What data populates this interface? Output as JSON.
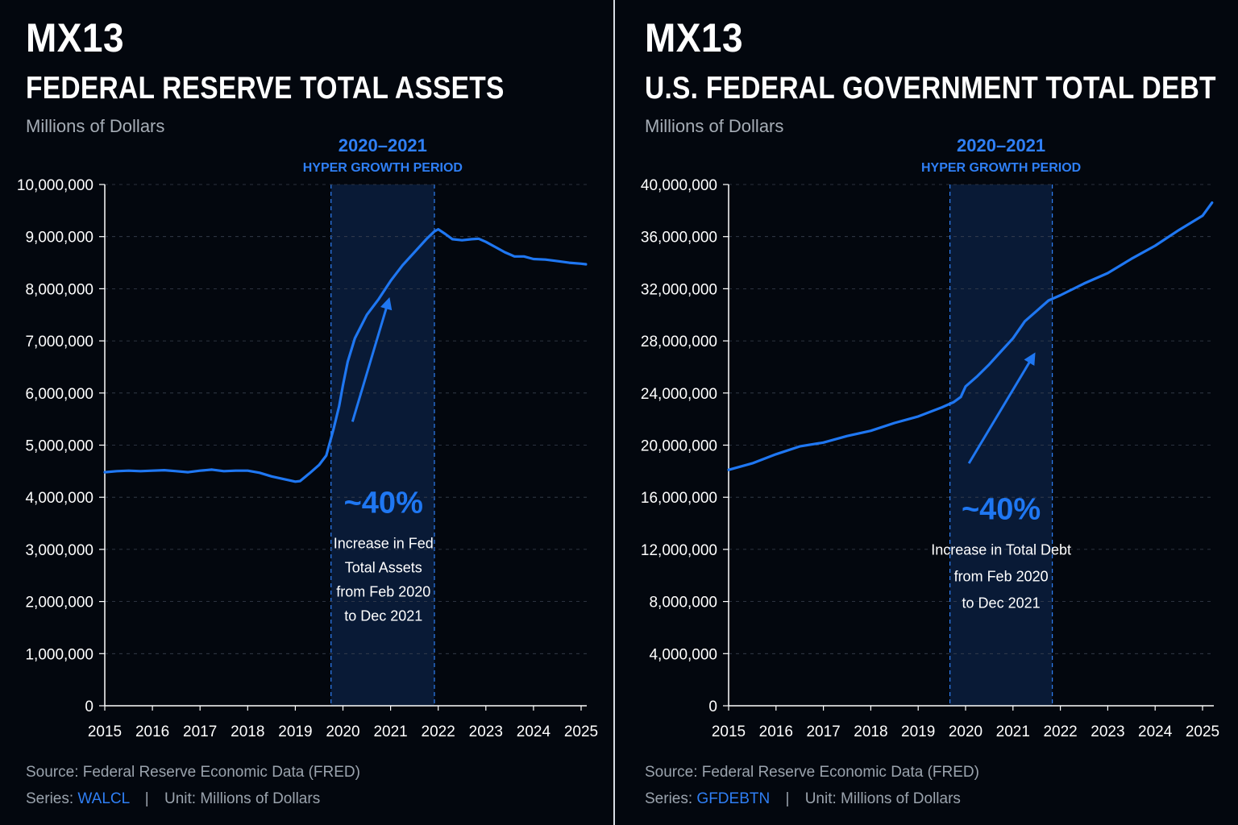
{
  "colors": {
    "background": "#03070e",
    "accent": "#1f77f2",
    "band_fill": "#0c2244",
    "band_edge": "#2f7ff5",
    "text": "#ffffff",
    "muted_text": "#a6adb6"
  },
  "left": {
    "brand": "MX13",
    "title": "FEDERAL RESERVE TOTAL ASSETS",
    "subtitle": "Millions of Dollars",
    "source": "Source: Federal Reserve Economic Data (FRED)",
    "series_prefix": "Series:",
    "series_code": "WALCL",
    "separator": "|",
    "unit": "Unit: Millions of Dollars"
  },
  "right": {
    "brand": "MX13",
    "title": "U.S. FEDERAL GOVERNMENT TOTAL DEBT",
    "subtitle": "Millions of Dollars",
    "source": "Source: Federal Reserve Economic Data (FRED)",
    "series_prefix": "Series:",
    "series_code": "GFDEBTN",
    "separator": "|",
    "unit": "Unit: Millions of Dollars"
  },
  "chart_data": [
    {
      "type": "line",
      "title": "FEDERAL RESERVE TOTAL ASSETS",
      "ylim": [
        0,
        10000000
      ],
      "xlim": [
        2015,
        2025.1
      ],
      "y_ticks": [
        {
          "v": 0,
          "label": "0"
        },
        {
          "v": 1000000,
          "label": "1,000,000"
        },
        {
          "v": 2000000,
          "label": "2,000,000"
        },
        {
          "v": 3000000,
          "label": "3,000,000"
        },
        {
          "v": 4000000,
          "label": "4,000,000"
        },
        {
          "v": 5000000,
          "label": "5,000,000"
        },
        {
          "v": 6000000,
          "label": "6,000,000"
        },
        {
          "v": 7000000,
          "label": "7,000,000"
        },
        {
          "v": 8000000,
          "label": "8,000,000"
        },
        {
          "v": 9000000,
          "label": "9,000,000"
        },
        {
          "v": 10000000,
          "label": "10,000,000"
        }
      ],
      "x_ticks": [
        {
          "v": 2015,
          "label": "2015"
        },
        {
          "v": 2016,
          "label": "2016"
        },
        {
          "v": 2017,
          "label": "2017"
        },
        {
          "v": 2018,
          "label": "2018"
        },
        {
          "v": 2019,
          "label": "2019"
        },
        {
          "v": 2020,
          "label": "2020"
        },
        {
          "v": 2021,
          "label": "2021"
        },
        {
          "v": 2022,
          "label": "2022"
        },
        {
          "v": 2023,
          "label": "2023"
        },
        {
          "v": 2024,
          "label": "2024"
        },
        {
          "v": 2025,
          "label": "2025"
        }
      ],
      "grid": "dashed horizontal",
      "band": {
        "from": 2019.75,
        "to": 2021.92,
        "label_top": "2020–2021",
        "label_sub": "HYPER GROWTH PERIOD"
      },
      "annotation": {
        "value": "~40%",
        "lines": [
          "Increase in Fed",
          "Total Assets",
          "from Feb 2020",
          "to Dec 2021"
        ],
        "arrow_from": {
          "x": 2020.2,
          "y": 5450000
        },
        "arrow_to": {
          "x": 2020.95,
          "y": 7750000
        },
        "anchor": {
          "x": 2020.85,
          "y": 3700000
        }
      },
      "series": [
        {
          "points": [
            [
              2015.0,
              4480000
            ],
            [
              2015.25,
              4500000
            ],
            [
              2015.5,
              4510000
            ],
            [
              2015.75,
              4500000
            ],
            [
              2016.0,
              4510000
            ],
            [
              2016.25,
              4520000
            ],
            [
              2016.5,
              4500000
            ],
            [
              2016.75,
              4480000
            ],
            [
              2017.0,
              4510000
            ],
            [
              2017.25,
              4530000
            ],
            [
              2017.5,
              4500000
            ],
            [
              2017.75,
              4510000
            ],
            [
              2018.0,
              4510000
            ],
            [
              2018.25,
              4470000
            ],
            [
              2018.5,
              4400000
            ],
            [
              2018.75,
              4350000
            ],
            [
              2019.0,
              4300000
            ],
            [
              2019.1,
              4310000
            ],
            [
              2019.3,
              4460000
            ],
            [
              2019.5,
              4620000
            ],
            [
              2019.65,
              4800000
            ],
            [
              2019.8,
              5300000
            ],
            [
              2019.92,
              5750000
            ],
            [
              2020.0,
              6150000
            ],
            [
              2020.1,
              6600000
            ],
            [
              2020.25,
              7050000
            ],
            [
              2020.5,
              7500000
            ],
            [
              2020.75,
              7800000
            ],
            [
              2021.0,
              8150000
            ],
            [
              2021.25,
              8450000
            ],
            [
              2021.5,
              8700000
            ],
            [
              2021.75,
              8950000
            ],
            [
              2021.92,
              9100000
            ],
            [
              2022.0,
              9140000
            ],
            [
              2022.15,
              9050000
            ],
            [
              2022.3,
              8950000
            ],
            [
              2022.5,
              8930000
            ],
            [
              2022.7,
              8950000
            ],
            [
              2022.85,
              8960000
            ],
            [
              2023.0,
              8900000
            ],
            [
              2023.2,
              8800000
            ],
            [
              2023.4,
              8700000
            ],
            [
              2023.6,
              8620000
            ],
            [
              2023.8,
              8620000
            ],
            [
              2024.0,
              8570000
            ],
            [
              2024.25,
              8560000
            ],
            [
              2024.5,
              8530000
            ],
            [
              2024.75,
              8500000
            ],
            [
              2025.0,
              8480000
            ],
            [
              2025.1,
              8470000
            ]
          ]
        }
      ]
    },
    {
      "type": "line",
      "title": "U.S. FEDERAL GOVERNMENT TOTAL DEBT",
      "ylim": [
        0,
        40000000
      ],
      "xlim": [
        2015,
        2025.2
      ],
      "y_ticks": [
        {
          "v": 0,
          "label": "0"
        },
        {
          "v": 4000000,
          "label": "4,000,000"
        },
        {
          "v": 8000000,
          "label": "8,000,000"
        },
        {
          "v": 12000000,
          "label": "12,000,000"
        },
        {
          "v": 16000000,
          "label": "16,000,000"
        },
        {
          "v": 20000000,
          "label": "20,000,000"
        },
        {
          "v": 24000000,
          "label": "24,000,000"
        },
        {
          "v": 28000000,
          "label": "28,000,000"
        },
        {
          "v": 32000000,
          "label": "32,000,000"
        },
        {
          "v": 36000000,
          "label": "36,000,000"
        },
        {
          "v": 40000000,
          "label": "40,000,000"
        }
      ],
      "x_ticks": [
        {
          "v": 2015,
          "label": "2015"
        },
        {
          "v": 2016,
          "label": "2016"
        },
        {
          "v": 2017,
          "label": "2017"
        },
        {
          "v": 2018,
          "label": "2018"
        },
        {
          "v": 2019,
          "label": "2019"
        },
        {
          "v": 2020,
          "label": "2020"
        },
        {
          "v": 2021,
          "label": "2021"
        },
        {
          "v": 2022,
          "label": "2022"
        },
        {
          "v": 2023,
          "label": "2023"
        },
        {
          "v": 2024,
          "label": "2024"
        },
        {
          "v": 2025,
          "label": "2025"
        }
      ],
      "grid": "dashed horizontal",
      "band": {
        "from": 2019.67,
        "to": 2021.83,
        "label_top": "2020–2021",
        "label_sub": "HYPER GROWTH PERIOD"
      },
      "annotation": {
        "value": "~40%",
        "lines": [
          "Increase in Total Debt",
          "from Feb 2020",
          "to Dec 2021"
        ],
        "arrow_from": {
          "x": 2020.07,
          "y": 18600000
        },
        "arrow_to": {
          "x": 2021.42,
          "y": 26800000
        },
        "anchor": {
          "x": 2020.75,
          "y": 14300000
        }
      },
      "series": [
        {
          "points": [
            [
              2015.0,
              18100000
            ],
            [
              2015.5,
              18600000
            ],
            [
              2016.0,
              19300000
            ],
            [
              2016.5,
              19900000
            ],
            [
              2017.0,
              20200000
            ],
            [
              2017.5,
              20700000
            ],
            [
              2018.0,
              21100000
            ],
            [
              2018.5,
              21700000
            ],
            [
              2019.0,
              22200000
            ],
            [
              2019.5,
              22900000
            ],
            [
              2019.75,
              23300000
            ],
            [
              2019.9,
              23700000
            ],
            [
              2020.0,
              24500000
            ],
            [
              2020.25,
              25300000
            ],
            [
              2020.5,
              26200000
            ],
            [
              2020.75,
              27200000
            ],
            [
              2021.0,
              28200000
            ],
            [
              2021.25,
              29500000
            ],
            [
              2021.5,
              30300000
            ],
            [
              2021.75,
              31100000
            ],
            [
              2022.0,
              31500000
            ],
            [
              2022.5,
              32400000
            ],
            [
              2023.0,
              33200000
            ],
            [
              2023.5,
              34300000
            ],
            [
              2024.0,
              35300000
            ],
            [
              2024.5,
              36500000
            ],
            [
              2025.0,
              37600000
            ],
            [
              2025.2,
              38600000
            ]
          ]
        }
      ]
    }
  ]
}
